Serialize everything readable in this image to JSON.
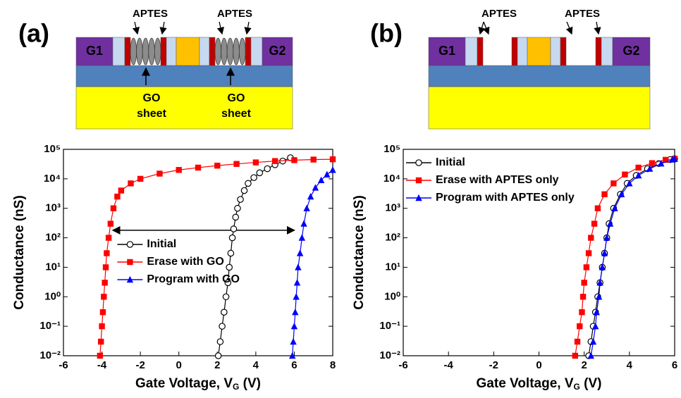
{
  "schematics": [
    {
      "panel_label": "(a)",
      "aptes": [
        "APTES",
        "APTES"
      ],
      "gates": [
        "G1",
        "G2"
      ],
      "go_sheet": [
        [
          "GO",
          "sheet"
        ],
        [
          "GO",
          "sheet"
        ]
      ]
    },
    {
      "panel_label": "(b)",
      "aptes": [
        "APTES",
        "APTES"
      ],
      "gates": [
        "G1",
        "G2"
      ]
    }
  ],
  "chart_data": [
    {
      "type": "scatter",
      "xlabel": [
        "Gate Voltage, V",
        "G",
        " (V)"
      ],
      "ylabel": "Conductance (nS)",
      "xlim": [
        -6,
        8
      ],
      "xticks": [
        -6,
        -4,
        -2,
        0,
        2,
        4,
        6,
        8
      ],
      "ylim": [
        0.01,
        100000
      ],
      "log_y": true,
      "yticks": [
        {
          "value": 0.01,
          "label": "10⁻²"
        },
        {
          "value": 0.1,
          "label": "10⁻¹"
        },
        {
          "value": 1,
          "label": "10⁰"
        },
        {
          "value": 10,
          "label": "10¹"
        },
        {
          "value": 100,
          "label": "10²"
        },
        {
          "value": 1000,
          "label": "10³"
        },
        {
          "value": 10000,
          "label": "10⁴"
        },
        {
          "value": 100000,
          "label": "10⁵"
        }
      ],
      "legend": "lower center",
      "arrow": {
        "x": [
          -3.1,
          6.0
        ],
        "y": 180
      },
      "series": [
        {
          "name": "Initial",
          "color": "#000000",
          "marker": "circle",
          "x": [
            2.05,
            2.15,
            2.25,
            2.35,
            2.45,
            2.55,
            2.62,
            2.7,
            2.78,
            2.85,
            2.95,
            3.05,
            3.2,
            3.4,
            3.6,
            3.9,
            4.2,
            4.6,
            5.0,
            5.4,
            5.8
          ],
          "values": [
            0.01,
            0.03,
            0.1,
            0.3,
            1,
            3,
            10,
            30,
            100,
            200,
            500,
            1000,
            2000,
            4000,
            7000,
            11000,
            16000,
            22000,
            30000,
            40000,
            52000
          ]
        },
        {
          "name": "Erase with GO",
          "color": "#ff0000",
          "marker": "square",
          "x": [
            -4.1,
            -4.05,
            -4.0,
            -3.95,
            -3.9,
            -3.85,
            -3.8,
            -3.75,
            -3.65,
            -3.55,
            -3.4,
            -3.2,
            -3.0,
            -2.5,
            -2.0,
            -1.0,
            0,
            1,
            2,
            3,
            4,
            5,
            6,
            7,
            8
          ],
          "values": [
            0.01,
            0.03,
            0.1,
            0.3,
            1,
            3,
            10,
            30,
            100,
            300,
            1000,
            2500,
            4000,
            7000,
            10000,
            15000,
            20000,
            24000,
            28000,
            32000,
            36000,
            40000,
            43000,
            45000,
            46000
          ]
        },
        {
          "name": "Program with GO",
          "color": "#0000ff",
          "marker": "triangle",
          "x": [
            5.9,
            5.95,
            6.0,
            6.05,
            6.1,
            6.15,
            6.2,
            6.3,
            6.4,
            6.5,
            6.65,
            6.85,
            7.1,
            7.4,
            7.7,
            8.0
          ],
          "values": [
            0.01,
            0.03,
            0.1,
            0.3,
            1,
            3,
            10,
            30,
            100,
            300,
            1000,
            2500,
            5000,
            9000,
            14000,
            20000
          ]
        }
      ]
    },
    {
      "type": "scatter",
      "xlabel": [
        "Gate Voltage, V",
        "G",
        " (V)"
      ],
      "ylabel": "Conductance (nS)",
      "xlim": [
        -6,
        6
      ],
      "xticks": [
        -6,
        -4,
        -2,
        0,
        2,
        4,
        6
      ],
      "ylim": [
        0.01,
        100000
      ],
      "log_y": true,
      "yticks": [
        {
          "value": 0.01,
          "label": "10⁻²"
        },
        {
          "value": 0.1,
          "label": "10⁻¹"
        },
        {
          "value": 1,
          "label": "10⁰"
        },
        {
          "value": 10,
          "label": "10¹"
        },
        {
          "value": 100,
          "label": "10²"
        },
        {
          "value": 1000,
          "label": "10³"
        },
        {
          "value": 10000,
          "label": "10⁴"
        },
        {
          "value": 100000,
          "label": "10⁵"
        }
      ],
      "legend": "upper left",
      "series": [
        {
          "name": "Initial",
          "color": "#000000",
          "marker": "circle",
          "x": [
            2.2,
            2.3,
            2.4,
            2.5,
            2.6,
            2.7,
            2.8,
            2.9,
            3.0,
            3.1,
            3.3,
            3.6,
            3.9,
            4.3,
            4.8,
            5.3,
            5.8,
            6.0
          ],
          "values": [
            0.01,
            0.03,
            0.1,
            0.3,
            1,
            3,
            10,
            30,
            100,
            300,
            1000,
            3000,
            7000,
            13000,
            22000,
            33000,
            45000,
            48000
          ]
        },
        {
          "name": "Erase with APTES only",
          "color": "#ff0000",
          "marker": "square",
          "x": [
            1.6,
            1.7,
            1.8,
            1.9,
            1.95,
            2.0,
            2.1,
            2.2,
            2.3,
            2.45,
            2.6,
            2.9,
            3.3,
            3.8,
            4.4,
            5.0,
            5.6,
            6.0
          ],
          "values": [
            0.01,
            0.03,
            0.1,
            0.3,
            1,
            3,
            10,
            30,
            100,
            300,
            1000,
            3000,
            7000,
            14000,
            24000,
            34000,
            44000,
            48000
          ]
        },
        {
          "name": "Program with APTES only",
          "color": "#0000ff",
          "marker": "triangle",
          "x": [
            2.3,
            2.4,
            2.5,
            2.55,
            2.65,
            2.7,
            2.8,
            2.9,
            3.0,
            3.15,
            3.35,
            3.65,
            4.0,
            4.4,
            4.9,
            5.4,
            5.9,
            6.0
          ],
          "values": [
            0.01,
            0.03,
            0.1,
            0.3,
            1,
            3,
            10,
            30,
            100,
            300,
            1000,
            3000,
            7000,
            13000,
            22000,
            33000,
            45000,
            47000
          ]
        }
      ]
    }
  ]
}
